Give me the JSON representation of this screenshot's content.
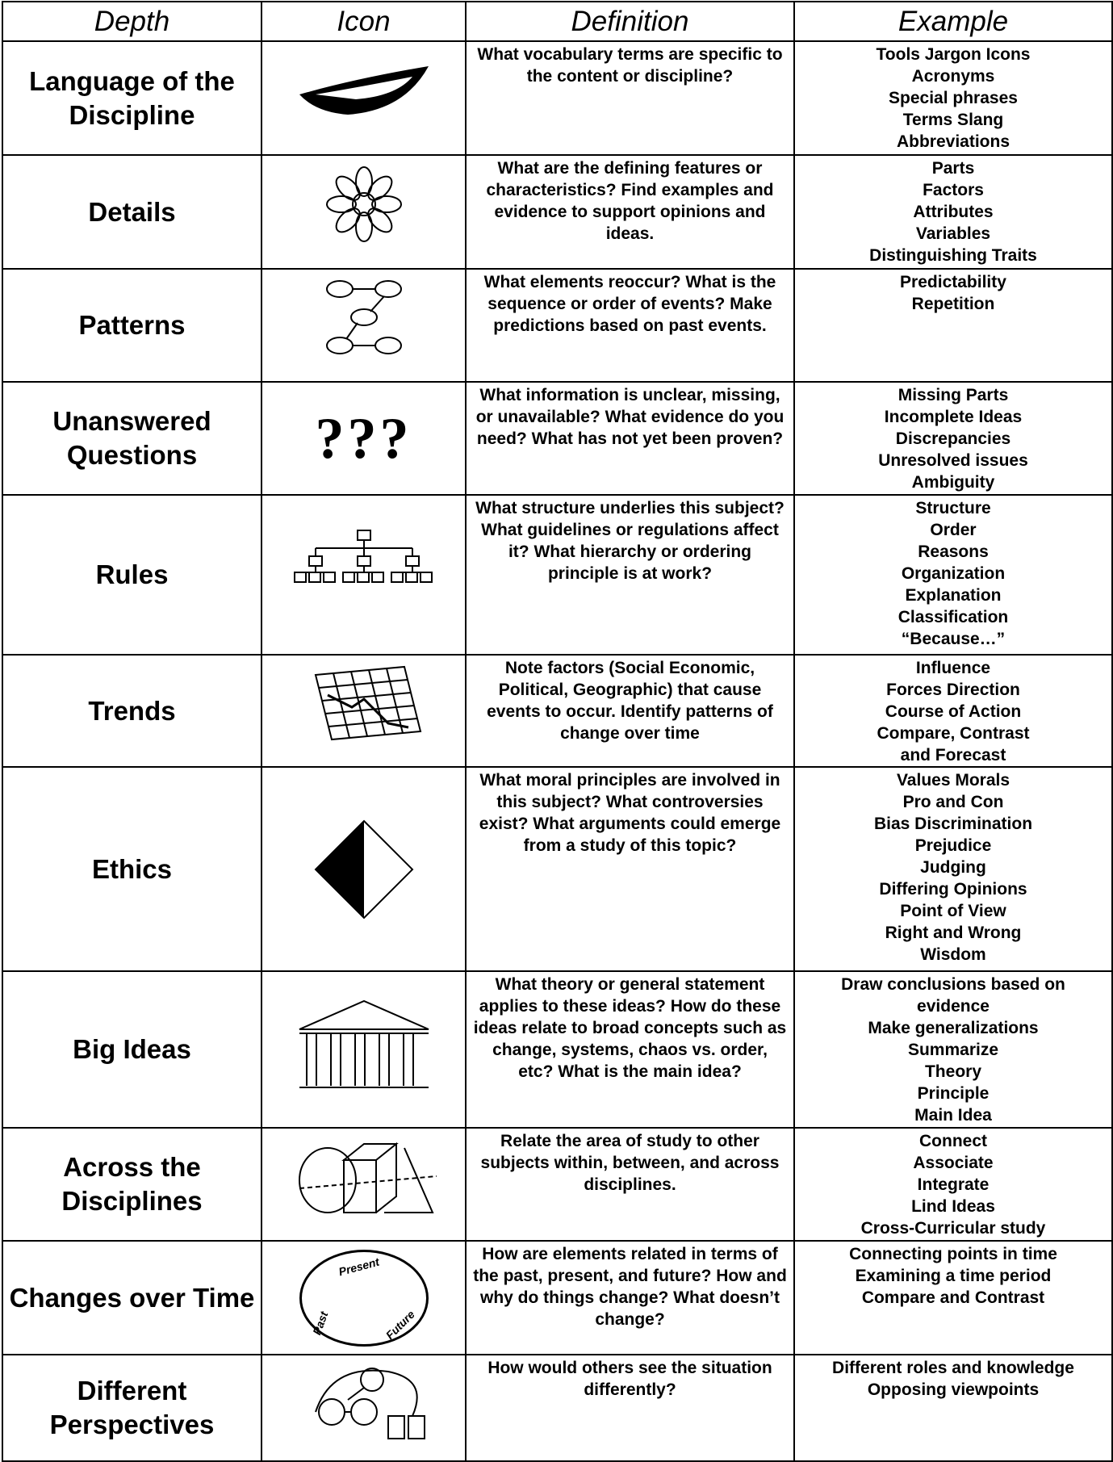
{
  "header": [
    "Depth",
    "Icon",
    "Definition",
    "Example"
  ],
  "rows": [
    {
      "depth": "Language of the Discipline",
      "definition": "What vocabulary terms are specific to the content or discipline?",
      "example": [
        "Tools Jargon Icons",
        "Acronyms",
        "Special phrases",
        "Terms Slang",
        "Abbreviations"
      ]
    },
    {
      "depth": "Details",
      "definition": "What are the defining features or characteristics? Find examples and evidence to support opinions and ideas.",
      "example": [
        "Parts",
        "Factors",
        "Attributes",
        "Variables",
        "Distinguishing Traits"
      ]
    },
    {
      "depth": "Patterns",
      "definition": "What elements reoccur? What is the sequence or order of events? Make predictions based on past events.",
      "example": [
        "Predictability",
        "Repetition"
      ]
    },
    {
      "depth": "Unanswered Questions",
      "icon_text": "???",
      "definition": "What information is unclear, missing, or unavailable? What evidence do you need? What has not yet been proven?",
      "example": [
        "Missing Parts",
        "Incomplete Ideas",
        "Discrepancies",
        "Unresolved issues",
        "Ambiguity"
      ]
    },
    {
      "depth": "Rules",
      "definition": "What structure underlies this subject? What guidelines or regulations affect it? What hierarchy or ordering principle is at work?",
      "example": [
        "Structure",
        "Order",
        "Reasons",
        "Organization",
        "Explanation",
        "Classification",
        "“Because…”"
      ]
    },
    {
      "depth": "Trends",
      "definition": "Note factors (Social Economic, Political, Geographic) that cause events to occur. Identify patterns of change over time",
      "example": [
        "Influence",
        "Forces Direction",
        "Course of Action",
        "Compare, Contrast",
        "and Forecast"
      ]
    },
    {
      "depth": "Ethics",
      "definition": "What moral principles are involved in this subject? What controversies exist? What arguments could emerge from a study of this topic?",
      "example": [
        "Values Morals",
        "Pro and Con",
        "Bias Discrimination",
        "Prejudice",
        "Judging",
        "Differing Opinions",
        "Point of View",
        "Right and Wrong",
        "Wisdom"
      ]
    },
    {
      "depth": "Big Ideas",
      "definition": "What theory or general statement applies to these ideas? How do these ideas relate to broad concepts such as change, systems, chaos vs. order, etc? What is the main idea?",
      "example": [
        "Draw conclusions based on",
        "evidence",
        "Make generalizations",
        "Summarize",
        "Theory",
        "Principle",
        "Main Idea"
      ]
    },
    {
      "depth": "Across the Disciplines",
      "definition": "Relate the area of study to other subjects within, between, and across disciplines.",
      "example": [
        "Connect",
        "Associate",
        "Integrate",
        "Lind Ideas",
        "Cross-Curricular study"
      ]
    },
    {
      "depth": "Changes over Time",
      "icon_labels": [
        "Present",
        "Past",
        "Future"
      ],
      "definition": "How are elements related in terms of the past, present, and future? How and why do things change? What doesn’t change?",
      "example": [
        "Connecting points in time",
        "Examining a time period",
        "Compare and Contrast"
      ]
    },
    {
      "depth": "Different Perspectives",
      "definition": "How would others see the situation differently?",
      "example": [
        "Different roles and knowledge",
        "Opposing viewpoints"
      ]
    }
  ]
}
